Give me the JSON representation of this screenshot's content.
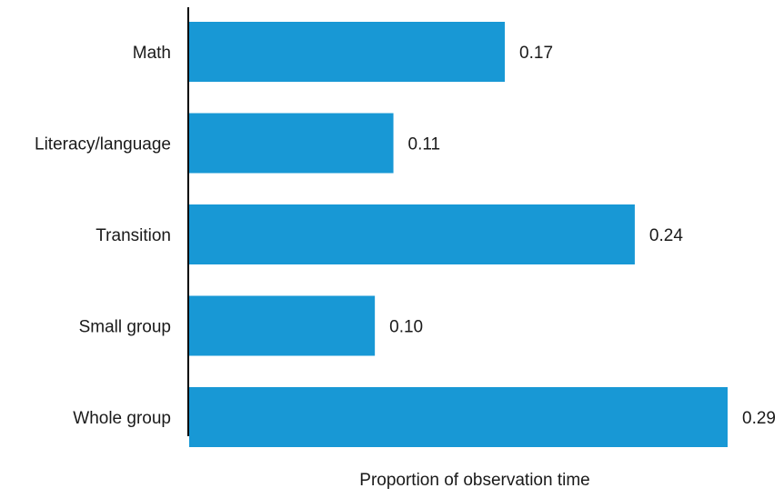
{
  "chart_data": {
    "type": "bar",
    "orientation": "horizontal",
    "categories": [
      "Math",
      "Literacy/language",
      "Transition",
      "Small group",
      "Whole group"
    ],
    "values": [
      0.17,
      0.11,
      0.24,
      0.1,
      0.29
    ],
    "value_labels": [
      "0.17",
      "0.11",
      "0.24",
      "0.10",
      "0.29"
    ],
    "xlabel": "Proportion of observation time",
    "ylabel": "",
    "xlim": [
      0,
      0.29
    ],
    "grid": false,
    "legend": "none",
    "bar_color": "#1898d5",
    "axis_color": "#000000"
  }
}
